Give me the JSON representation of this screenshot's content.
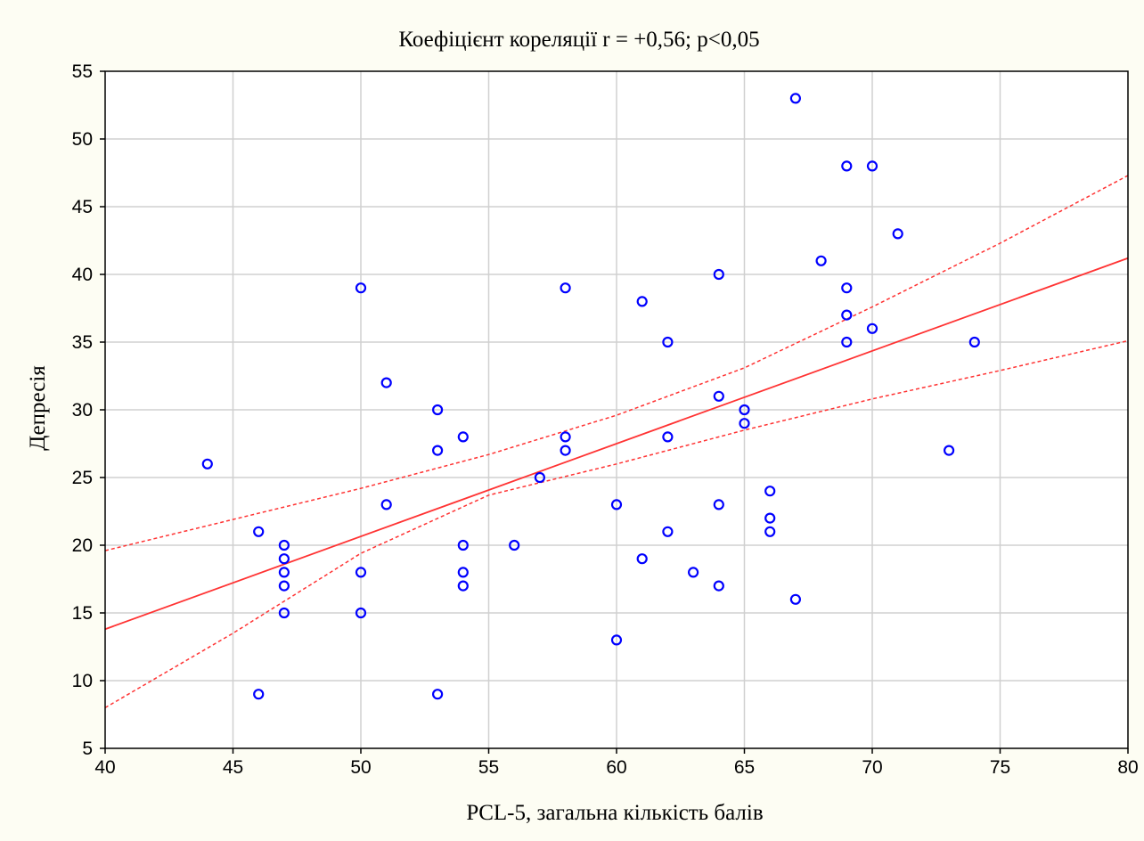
{
  "chart_data": {
    "type": "scatter",
    "title": "Коефіцієнт кореляції r = +0,56; p<0,05",
    "xlabel": "PCL-5, загальна кількість балів",
    "ylabel": "Депресія",
    "xlim": [
      40,
      80
    ],
    "ylim": [
      5,
      55
    ],
    "xticks": [
      40,
      45,
      50,
      55,
      60,
      65,
      70,
      75,
      80
    ],
    "yticks": [
      5,
      10,
      15,
      20,
      25,
      30,
      35,
      40,
      45,
      50,
      55
    ],
    "xtick_labels": [
      "40",
      "45",
      "50",
      "55",
      "60",
      "65",
      "70",
      "75",
      "80"
    ],
    "ytick_labels": [
      "5",
      "10",
      "15",
      "20",
      "25",
      "30",
      "35",
      "40",
      "45",
      "50",
      "55"
    ],
    "grid": true,
    "points": [
      {
        "x": 44,
        "y": 26
      },
      {
        "x": 46,
        "y": 21
      },
      {
        "x": 46,
        "y": 9
      },
      {
        "x": 47,
        "y": 20
      },
      {
        "x": 47,
        "y": 19
      },
      {
        "x": 47,
        "y": 18
      },
      {
        "x": 47,
        "y": 17
      },
      {
        "x": 47,
        "y": 15
      },
      {
        "x": 50,
        "y": 39
      },
      {
        "x": 50,
        "y": 18
      },
      {
        "x": 50,
        "y": 15
      },
      {
        "x": 51,
        "y": 32
      },
      {
        "x": 51,
        "y": 23
      },
      {
        "x": 53,
        "y": 30
      },
      {
        "x": 53,
        "y": 27
      },
      {
        "x": 53,
        "y": 9
      },
      {
        "x": 54,
        "y": 28
      },
      {
        "x": 54,
        "y": 20
      },
      {
        "x": 54,
        "y": 18
      },
      {
        "x": 54,
        "y": 17
      },
      {
        "x": 56,
        "y": 20
      },
      {
        "x": 57,
        "y": 25
      },
      {
        "x": 58,
        "y": 39
      },
      {
        "x": 58,
        "y": 28
      },
      {
        "x": 58,
        "y": 27
      },
      {
        "x": 60,
        "y": 23
      },
      {
        "x": 60,
        "y": 13
      },
      {
        "x": 61,
        "y": 38
      },
      {
        "x": 61,
        "y": 19
      },
      {
        "x": 62,
        "y": 35
      },
      {
        "x": 62,
        "y": 28
      },
      {
        "x": 62,
        "y": 21
      },
      {
        "x": 63,
        "y": 18
      },
      {
        "x": 64,
        "y": 40
      },
      {
        "x": 64,
        "y": 31
      },
      {
        "x": 64,
        "y": 23
      },
      {
        "x": 64,
        "y": 17
      },
      {
        "x": 65,
        "y": 30
      },
      {
        "x": 65,
        "y": 29
      },
      {
        "x": 66,
        "y": 24
      },
      {
        "x": 66,
        "y": 22
      },
      {
        "x": 66,
        "y": 21
      },
      {
        "x": 67,
        "y": 53
      },
      {
        "x": 67,
        "y": 16
      },
      {
        "x": 68,
        "y": 41
      },
      {
        "x": 69,
        "y": 48
      },
      {
        "x": 69,
        "y": 39
      },
      {
        "x": 69,
        "y": 37
      },
      {
        "x": 69,
        "y": 35
      },
      {
        "x": 70,
        "y": 48
      },
      {
        "x": 70,
        "y": 36
      },
      {
        "x": 71,
        "y": 43
      },
      {
        "x": 73,
        "y": 27
      },
      {
        "x": 74,
        "y": 35
      }
    ],
    "fit_line": {
      "x": [
        40,
        80
      ],
      "y": [
        13.8,
        41.2
      ]
    },
    "confidence_upper": {
      "x": [
        40,
        45,
        50,
        55,
        60,
        65,
        70,
        75,
        80
      ],
      "y": [
        19.6,
        21.9,
        24.2,
        26.7,
        29.6,
        33.1,
        37.6,
        42.3,
        47.3
      ]
    },
    "confidence_lower": {
      "x": [
        40,
        45,
        50,
        55,
        60,
        65,
        70,
        75,
        80
      ],
      "y": [
        8.0,
        13.5,
        19.4,
        23.7,
        26.0,
        28.5,
        30.8,
        32.9,
        35.1
      ]
    },
    "colors": {
      "background": "#fdfdf3",
      "plot_background": "#ffffff",
      "grid": "#d0d0d0",
      "points": "#0000ff",
      "fit_line": "#ff3333"
    }
  }
}
